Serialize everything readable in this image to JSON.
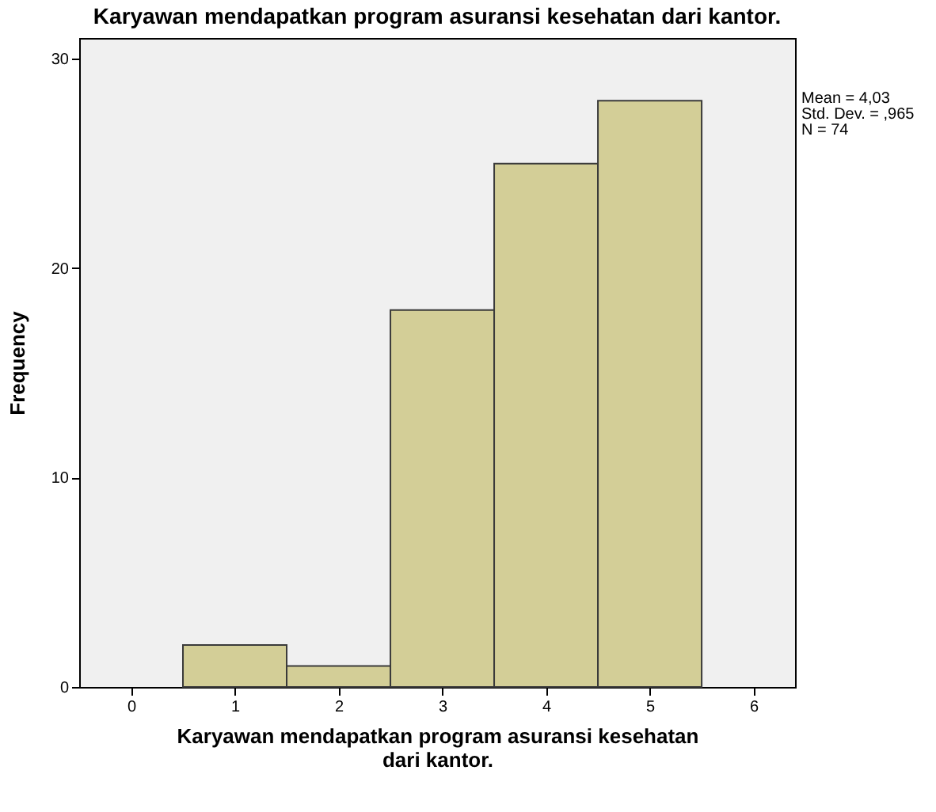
{
  "chart_data": {
    "type": "histogram",
    "title": "Karyawan mendapatkan program asuransi kesehatan dari kantor.",
    "xlabel": "Karyawan mendapatkan program asuransi kesehatan dari kantor.",
    "ylabel": "Frequency",
    "bins": [
      0.5,
      1.5,
      2.5,
      3.5,
      4.5,
      5.5
    ],
    "values": [
      2,
      1,
      18,
      25,
      28
    ],
    "color": "#d3ce97",
    "xlim": [
      -0.5,
      6.4
    ],
    "xticks": [
      0,
      1,
      2,
      3,
      4,
      5,
      6
    ],
    "ylim": [
      0,
      31
    ],
    "yticks": [
      0,
      10,
      20,
      30
    ],
    "grid": false,
    "annotations": [
      "Mean = 4,03",
      "Std. Dev. = ,965",
      "N = 74"
    ]
  }
}
